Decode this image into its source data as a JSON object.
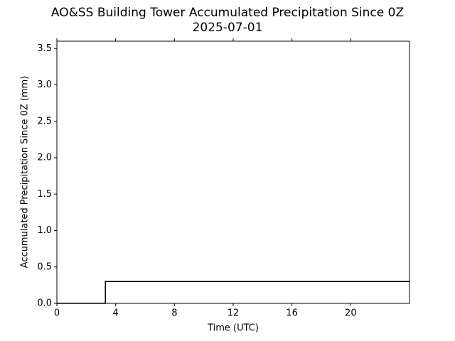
{
  "chart_data": {
    "type": "line",
    "title": "AO&SS Building Tower Accumulated Precipitation Since 0Z",
    "subtitle": "2025-07-01",
    "x_label": "Time (UTC)",
    "y_label": "Accumulated Precipitation Since 0Z (mm)",
    "x": [
      0,
      3.3,
      3.3,
      24
    ],
    "series": [
      {
        "name": "Accumulated precipitation",
        "color": "#000000",
        "values": [
          0,
          0,
          0.3,
          0.3
        ]
      }
    ],
    "xlim": [
      0,
      24
    ],
    "xticks": [
      0,
      4,
      8,
      12,
      16,
      20
    ],
    "ylim": [
      0,
      3.6
    ],
    "yticks": [
      {
        "value": 0,
        "label": "0.0"
      },
      0.5,
      {
        "value": 1,
        "label": "1.0"
      },
      1.5,
      {
        "value": 2,
        "label": "2.0"
      },
      2.5,
      {
        "value": 3,
        "label": "3.0"
      },
      3.5
    ],
    "grid": false
  }
}
